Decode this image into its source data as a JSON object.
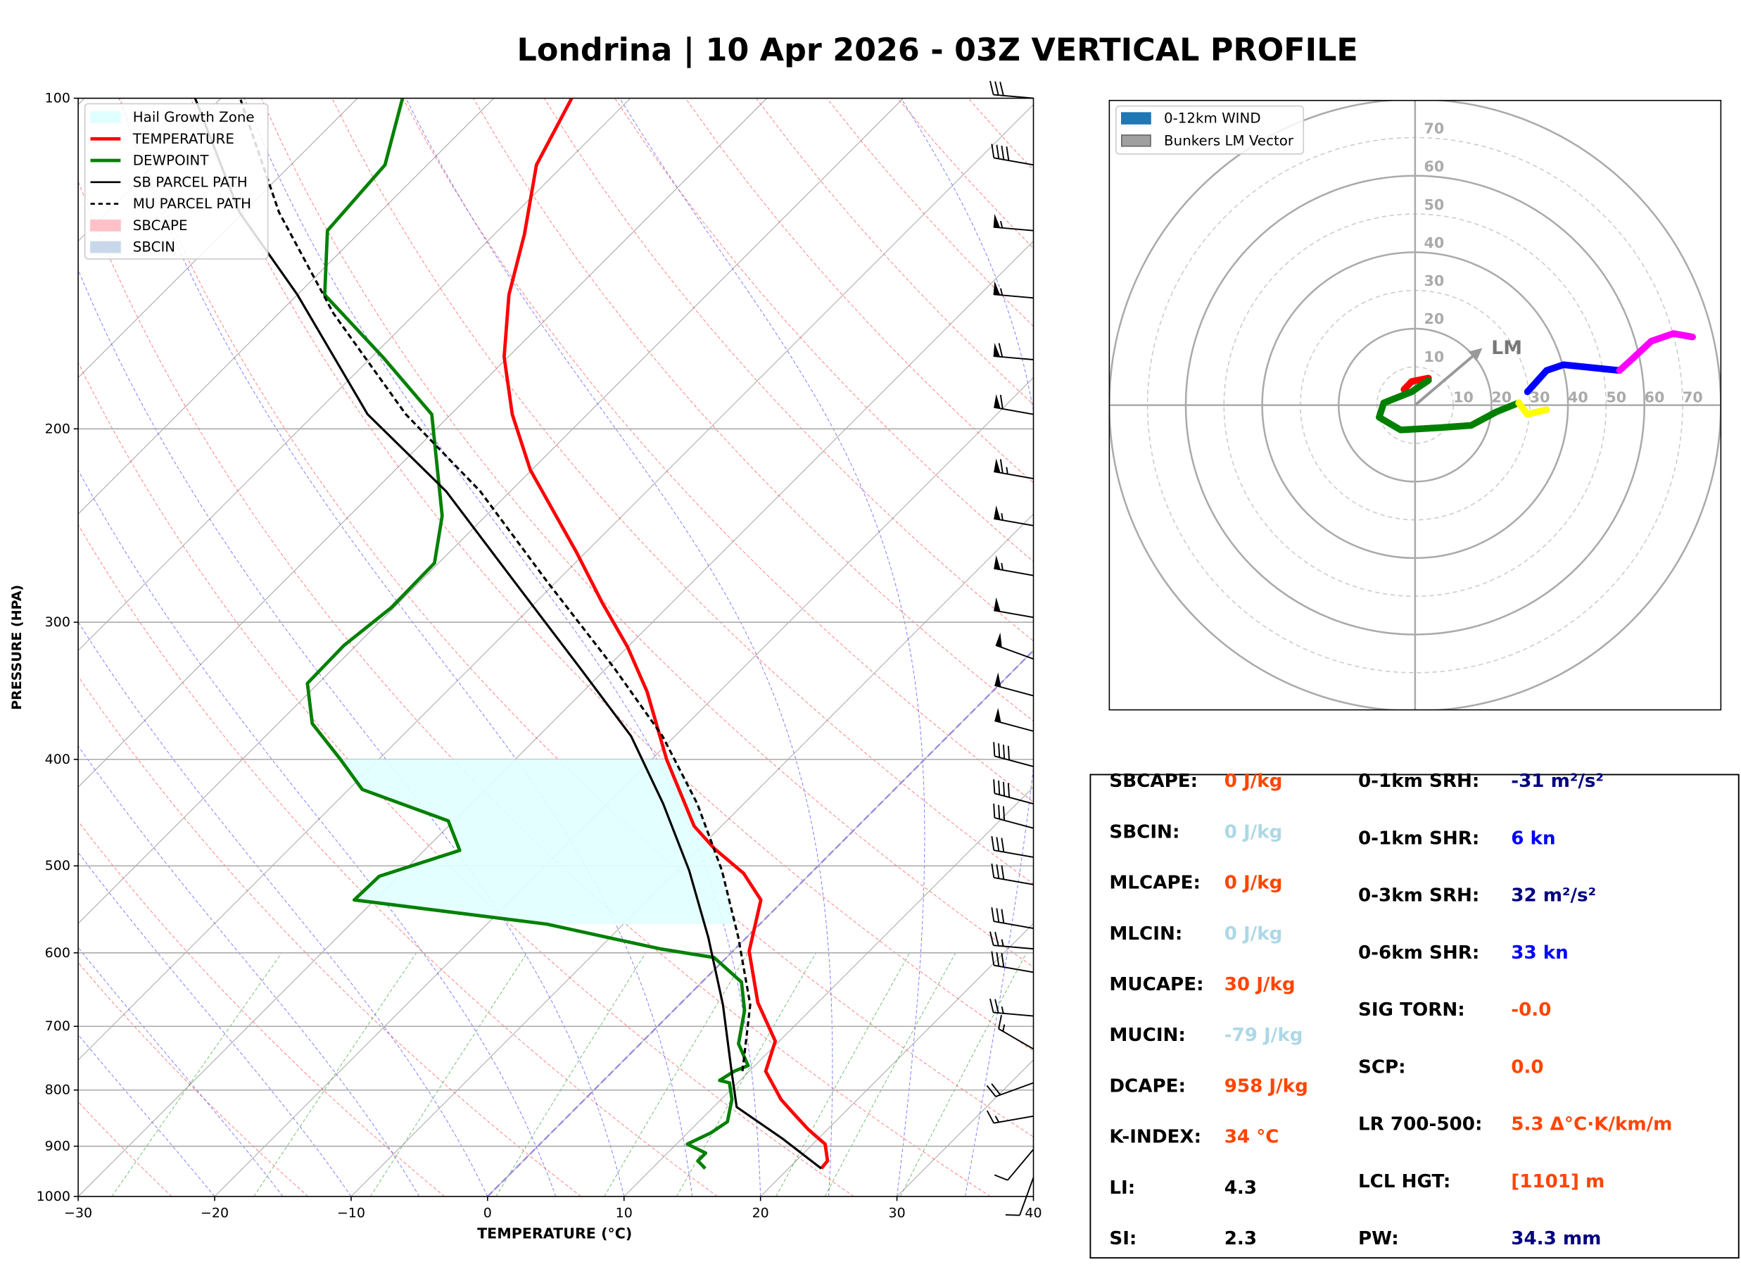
{
  "chart_data": [
    {
      "type": "skewt",
      "title": "Londrina | 10 Apr 2026 - 03Z VERTICAL PROFILE",
      "xlabel": "TEMPERATURE (°C)",
      "ylabel": "PRESSURE (HPA)",
      "xlim": [
        -30,
        40
      ],
      "xticks": [
        {
          "value": -30,
          "label": "−30"
        },
        {
          "value": -20,
          "label": "−20"
        },
        {
          "value": -10,
          "label": "−10"
        },
        0,
        10,
        20,
        30,
        40
      ],
      "ylim": [
        1000,
        100
      ],
      "yticks": [
        100,
        200,
        300,
        400,
        500,
        600,
        700,
        800,
        900,
        1000
      ],
      "log_y": true,
      "grid": true,
      "legend": "upper left",
      "series": [
        {
          "name": "TEMPERATURE",
          "color": "#ff0000",
          "pressure": [
            943,
            928,
            896,
            869,
            841,
            816,
            769,
            722,
            666,
            598,
            537,
            508,
            482,
            460,
            400,
            347,
            316,
            288,
            259,
            218,
            194,
            172,
            151,
            133,
            115,
            100
          ],
          "values": [
            22.4,
            22.3,
            20.9,
            18.6,
            16.4,
            14.4,
            11.2,
            9.7,
            5.6,
            1.2,
            -1.7,
            -4.9,
            -8.9,
            -12.0,
            -18.9,
            -25.3,
            -30.0,
            -35.1,
            -40.7,
            -50.1,
            -55.5,
            -60.3,
            -64.5,
            -67.8,
            -72.0,
            -74.3
          ]
        },
        {
          "name": "DEWPOINT",
          "color": "#008000",
          "pressure": [
            943,
            928,
            913,
            896,
            875,
            855,
            816,
            788,
            784,
            769,
            760,
            726,
            677,
            638,
            606,
            595,
            565,
            537,
            511,
            484,
            455,
            426,
            400,
            371,
            341,
            315,
            291,
            265,
            240,
            194,
            172,
            151,
            132,
            115,
            100
          ],
          "values": [
            13.9,
            12.8,
            12.8,
            10.8,
            11.7,
            12.1,
            10.8,
            9.4,
            8.5,
            8.9,
            9.5,
            7.2,
            5.2,
            2.9,
            -0.9,
            -5.5,
            -15.6,
            -31.5,
            -31.4,
            -27.4,
            -30.4,
            -39.0,
            -42.8,
            -47.5,
            -50.8,
            -50.9,
            -50.2,
            -50.3,
            -53.2,
            -61.4,
            -69.2,
            -78.0,
            -82.5,
            -83.1,
            -86.7
          ]
        },
        {
          "name": "SB PARCEL PATH",
          "color": "#000000",
          "pressure": [
            943,
            885,
            829,
            769,
            669,
            581,
            505,
            439,
            381,
            331,
            275,
            228,
            194,
            151,
            127,
            100
          ],
          "values": [
            22.4,
            17.3,
            11.7,
            8.7,
            3.2,
            -2.8,
            -9.1,
            -15.9,
            -23.2,
            -31.8,
            -43.2,
            -54.7,
            -66.1,
            -80.0,
            -90.3,
            -101.9
          ]
        },
        {
          "name": "MU PARCEL PATH",
          "color": "#000000",
          "dash": true,
          "pressure": [
            769,
            669,
            581,
            505,
            439,
            381,
            331,
            275,
            228,
            194,
            157,
            127,
            100
          ],
          "values": [
            9.5,
            5.2,
            -0.6,
            -6.7,
            -13.4,
            -20.9,
            -29.3,
            -40.8,
            -52.2,
            -63.3,
            -76.0,
            -87.4,
            -98.6
          ]
        }
      ],
      "areas": [
        {
          "name": "Hail Growth Zone",
          "color": "#e0ffff",
          "bottom": 565,
          "top": 400
        },
        {
          "name": "SBCAPE",
          "color": "#ffc0c8"
        },
        {
          "name": "SBCIN",
          "color": "#c8d8ea"
        }
      ],
      "wind": {
        "pressure": [
          100,
          115,
          132,
          152,
          173,
          194,
          222,
          245,
          272,
          297,
          324,
          350,
          377,
          406,
          439,
          462,
          491,
          520,
          570,
          595,
          625,
          685,
          734,
          788,
          845,
          906,
          961
        ],
        "speed": [
          30,
          40,
          55,
          55,
          60,
          60,
          65,
          55,
          55,
          50,
          50,
          50,
          50,
          40,
          40,
          30,
          30,
          30,
          30,
          25,
          30,
          25,
          15,
          20,
          15,
          10,
          10
        ],
        "direction": [
          275,
          280,
          275,
          275,
          275,
          280,
          280,
          280,
          280,
          280,
          290,
          285,
          285,
          285,
          285,
          285,
          280,
          280,
          280,
          275,
          280,
          275,
          300,
          250,
          260,
          220,
          200
        ]
      }
    },
    {
      "type": "hodograph",
      "xlim": [
        -80,
        80
      ],
      "ylim": [
        -80,
        80
      ],
      "rings": [
        10,
        20,
        30,
        40,
        50,
        60,
        70,
        80
      ],
      "xticks": [
        10,
        20,
        30,
        40,
        50,
        60,
        70
      ],
      "yticks": [
        10,
        20,
        30,
        40,
        50,
        60,
        70
      ],
      "legend": [
        {
          "name": "0-12km WIND",
          "color": "#1f77b4"
        },
        {
          "name": "Bunkers LM Vector",
          "color": "#a0a0a0"
        }
      ],
      "series": [
        {
          "color": "#ff0000",
          "u": [
            -2.9,
            -0.9,
            3.5
          ],
          "v": [
            4.1,
            6.2,
            7.1
          ]
        },
        {
          "color": "#008000",
          "u": [
            3.5,
            -0.9,
            -8.2,
            -9.4,
            -3.8,
            6.5,
            14.7,
            21.2,
            27.1
          ],
          "v": [
            6.5,
            3.5,
            0.6,
            -3.2,
            -6.5,
            -5.9,
            -5.3,
            -1.8,
            0.6
          ]
        },
        {
          "color": "#ffff00",
          "u": [
            27.1,
            29.4,
            34.4
          ],
          "v": [
            0.6,
            -2.4,
            -1.2
          ]
        },
        {
          "color": "#0000ff",
          "u": [
            29.4,
            34.4,
            38.8,
            44.7,
            53.5
          ],
          "v": [
            3.5,
            9.1,
            10.6,
            10.0,
            9.1
          ]
        },
        {
          "color": "#ff00ff",
          "u": [
            53.5,
            57.1,
            61.8,
            67.6,
            72.6
          ],
          "v": [
            9.1,
            12.4,
            16.8,
            18.8,
            17.9
          ]
        }
      ],
      "storm_motion": {
        "label": "LM",
        "u": 17.6,
        "v": 15.0,
        "color": "#999999"
      }
    }
  ],
  "indices": {
    "left": [
      {
        "label": "SBCAPE:",
        "value": "0 J/kg",
        "color": "#ff4500"
      },
      {
        "label": "SBCIN:",
        "value": "0 J/kg",
        "color": "#add8e6"
      },
      {
        "label": "MLCAPE:",
        "value": "0 J/kg",
        "color": "#ff4500"
      },
      {
        "label": "MLCIN:",
        "value": "0 J/kg",
        "color": "#add8e6"
      },
      {
        "label": "MUCAPE:",
        "value": "30 J/kg",
        "color": "#ff4500"
      },
      {
        "label": "MUCIN:",
        "value": "-79 J/kg",
        "color": "#add8e6"
      },
      {
        "label": "DCAPE:",
        "value": "958 J/kg",
        "color": "#ff4500"
      },
      {
        "label": "K-INDEX:",
        "value": "34 °C",
        "color": "#ff4500"
      },
      {
        "label": "LI:",
        "value": "4.3",
        "color": "#000000"
      },
      {
        "label": "SI:",
        "value": "2.3",
        "color": "#000000"
      }
    ],
    "right": [
      {
        "label": "0-1km SRH:",
        "value": "-31 m²/s²",
        "color": "#000080"
      },
      {
        "label": "0-1km SHR:",
        "value": "6 kn",
        "color": "#0000ff"
      },
      {
        "label": "0-3km SRH:",
        "value": "32 m²/s²",
        "color": "#000080"
      },
      {
        "label": "0-6km SHR:",
        "value": "33 kn",
        "color": "#0000ff"
      },
      {
        "label": "SIG TORN:",
        "value": "-0.0",
        "color": "#ff4500"
      },
      {
        "label": "SCP:",
        "value": "0.0",
        "color": "#ff4500"
      },
      {
        "label": "LR 700-500:",
        "value": "5.3 Δ°C·K/km/m",
        "color": "#ff4500"
      },
      {
        "label": "LCL HGT:",
        "value": "[1101] m",
        "color": "#ff4500"
      },
      {
        "label": "PW:",
        "value": "34.3 mm",
        "color": "#000080"
      }
    ]
  }
}
